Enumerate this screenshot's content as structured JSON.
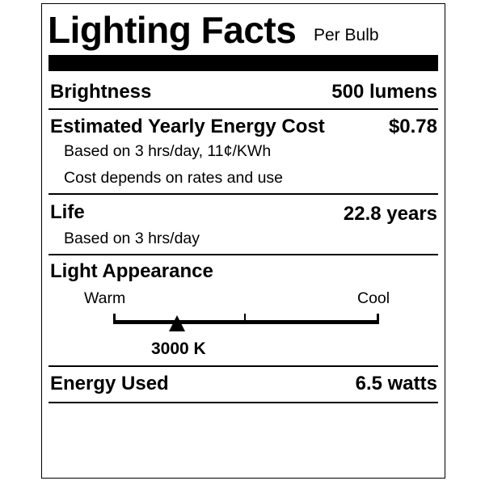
{
  "title": "Lighting Facts",
  "subtitle": "Per Bulb",
  "brightness": {
    "label": "Brightness",
    "value": "500 lumens"
  },
  "energy_cost": {
    "label": "Estimated Yearly Energy Cost",
    "value": "$0.78",
    "notes": [
      "Based on 3 hrs/day, 11¢/KWh",
      "Cost depends on rates and use"
    ]
  },
  "life": {
    "label": "Life",
    "value": "22.8 years",
    "note": "Based on 3 hrs/day"
  },
  "light_appearance": {
    "label": "Light Appearance",
    "warm_label": "Warm",
    "cool_label": "Cool",
    "value": "3000 K",
    "marker_position_fraction": 0.24
  },
  "energy_used": {
    "label": "Energy Used",
    "value": "6.5 watts"
  }
}
